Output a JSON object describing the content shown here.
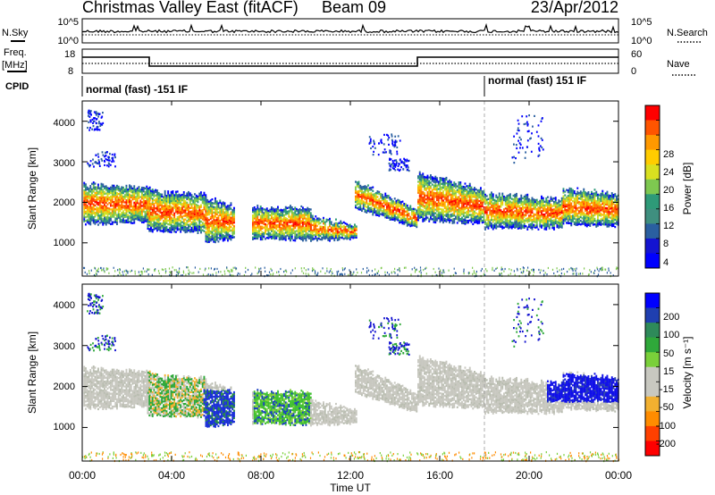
{
  "header": {
    "station": "Christmas Valley East (fitACF)",
    "beam": "Beam 09",
    "date": "23/Apr/2012"
  },
  "strips": {
    "nsky_label": "N.Sky",
    "nsearch_label": "N.Search",
    "noise_ticks_left": [
      "10^5",
      "10^0"
    ],
    "noise_ticks_right": [
      "10^5",
      "10^0"
    ],
    "freq_label_1": "Freq.",
    "freq_label_2": "[MHz]",
    "freq_ticks": [
      "18",
      "8"
    ],
    "nave_label": "Nave",
    "nave_ticks": [
      "60",
      "0"
    ],
    "cpid_label": "CPID",
    "cpid_segments": [
      {
        "label": "normal (fast) -151 IF",
        "start_hour": 0
      },
      {
        "label": "normal (fast) 151 IF",
        "start_hour": 18
      }
    ]
  },
  "chart_data": [
    {
      "type": "heatmap",
      "panel": "power",
      "ylabel": "Slant Range [km]",
      "xlabel": "",
      "ylim": [
        180,
        4500
      ],
      "yticks": [
        "1000",
        "2000",
        "3000",
        "4000"
      ],
      "xlim": [
        "00:00",
        "24:00"
      ],
      "colorbar_label": "Power [dB]",
      "colorbar_ticks": [
        "28",
        "24",
        "20",
        "16",
        "12",
        "8",
        "4"
      ],
      "colorbar_colors": [
        "#ff0000",
        "#ff5500",
        "#ff9900",
        "#ffcc00",
        "#d9e020",
        "#7ec850",
        "#2e9a78",
        "#3f8f7f",
        "#2a5fa0",
        "#1414d0",
        "#0000ff"
      ]
    },
    {
      "type": "heatmap",
      "panel": "velocity",
      "ylabel": "Slant Range [km]",
      "xlabel": "Time UT",
      "ylim": [
        180,
        4500
      ],
      "yticks": [
        "1000",
        "2000",
        "3000",
        "4000"
      ],
      "xticks": [
        "00:00",
        "04:00",
        "08:00",
        "12:00",
        "16:00",
        "20:00",
        "00:00"
      ],
      "colorbar_label": "Velocity [m s⁻¹]",
      "colorbar_ticks": [
        "200",
        "100",
        "50",
        "15",
        "-15",
        "-50",
        "-100",
        "-200"
      ],
      "colorbar_colors": [
        "#0000ff",
        "#1f3fb0",
        "#2e8a5a",
        "#2fa83a",
        "#7ad03a",
        "#c8c8c0",
        "#c8c8c0",
        "#f2b030",
        "#ff8c00",
        "#ff4000",
        "#ff0000"
      ]
    }
  ]
}
